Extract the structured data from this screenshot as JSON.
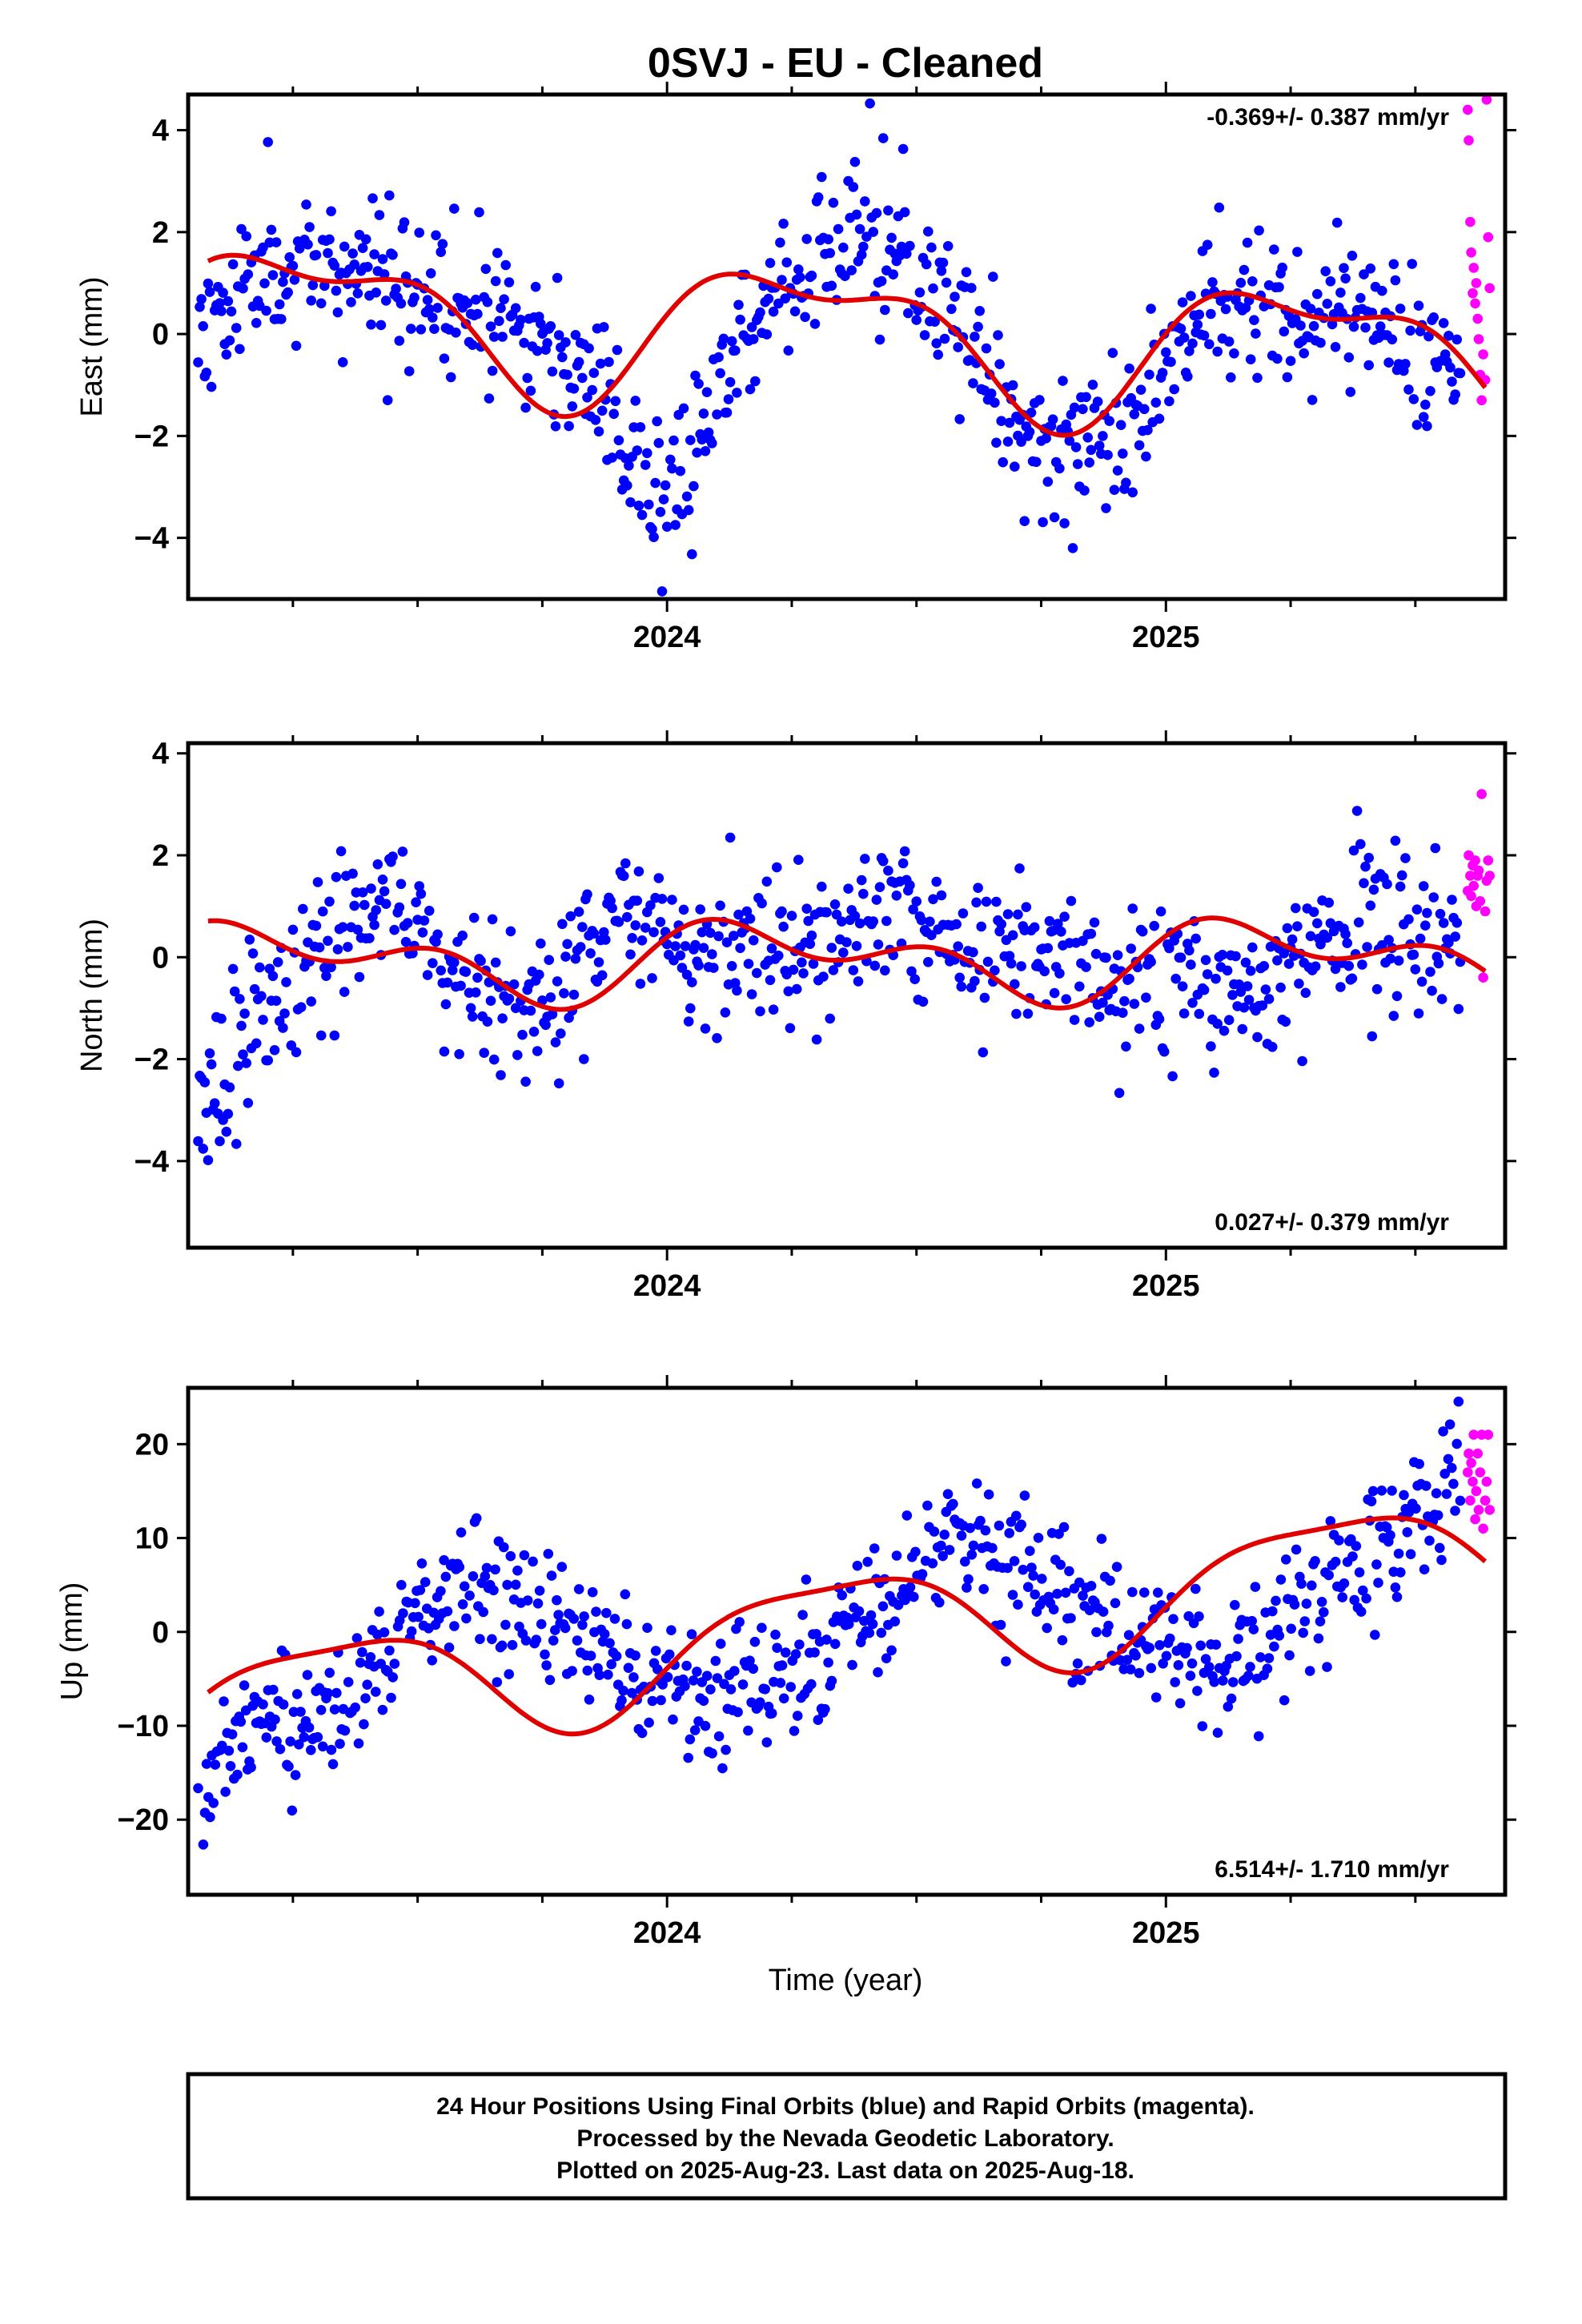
{
  "title": "0SVJ  - EU - Cleaned",
  "xlabel": "Time (year)",
  "footer": {
    "line1": "24 Hour Positions Using Final Orbits (blue) and Rapid Orbits (magenta).",
    "line2": "Processed by the Nevada Geodetic Laboratory.",
    "line3": "Plotted on 2025-Aug-23. Last data on 2025-Aug-18."
  },
  "colors": {
    "final": "#0000ff",
    "rapid": "#ff00ff",
    "model": "#e00000",
    "axis": "#000000"
  },
  "chart_data": [
    {
      "type": "scatter",
      "id": "east",
      "ylabel": "East (mm)",
      "rate_text": "-0.369+/- 0.387 mm/yr",
      "rate_position": "top-right",
      "xlim": [
        2023.04,
        2025.68
      ],
      "ylim": [
        -5.2,
        4.7
      ],
      "xticks": [
        2024,
        2025
      ],
      "yticks": [
        4,
        2,
        0,
        -2,
        -4
      ],
      "model": {
        "offset": 0.0,
        "rate": -0.369,
        "ref": 2024.35,
        "a1": -0.2,
        "b1": 1.25,
        "a2": 0.45,
        "b2": 0.35
      },
      "final_anchors": [
        [
          2023.05,
          0.1
        ],
        [
          2023.1,
          0.4
        ],
        [
          2023.2,
          1.1
        ],
        [
          2023.3,
          1.4
        ],
        [
          2023.4,
          1.2
        ],
        [
          2023.5,
          0.9
        ],
        [
          2023.6,
          0.6
        ],
        [
          2023.7,
          0.3
        ],
        [
          2023.8,
          -0.7
        ],
        [
          2023.9,
          -1.6
        ],
        [
          2023.97,
          -3.5
        ],
        [
          2024.05,
          -2.3
        ],
        [
          2024.1,
          -1.4
        ],
        [
          2024.15,
          0.2
        ],
        [
          2024.22,
          0.8
        ],
        [
          2024.3,
          1.4
        ],
        [
          2024.38,
          1.8
        ],
        [
          2024.45,
          1.6
        ],
        [
          2024.52,
          0.9
        ],
        [
          2024.6,
          0.1
        ],
        [
          2024.66,
          -1.0
        ],
        [
          2024.72,
          -2.2
        ],
        [
          2024.8,
          -2.0
        ],
        [
          2024.88,
          -2.1
        ],
        [
          2024.96,
          -1.3
        ],
        [
          2025.02,
          -0.4
        ],
        [
          2025.1,
          0.9
        ],
        [
          2025.18,
          0.6
        ],
        [
          2025.25,
          0.5
        ],
        [
          2025.35,
          0.4
        ],
        [
          2025.45,
          0.1
        ],
        [
          2025.55,
          -0.5
        ],
        [
          2025.58,
          -0.7
        ]
      ],
      "final_count": 760,
      "final_scatter": 0.75,
      "final_seed": 11,
      "final_range": [
        2023.06,
        2025.59
      ],
      "rapid": [
        [
          2025.605,
          4.4
        ],
        [
          2025.607,
          3.8
        ],
        [
          2025.61,
          2.2
        ],
        [
          2025.612,
          1.6
        ],
        [
          2025.615,
          0.8
        ],
        [
          2025.617,
          1.3
        ],
        [
          2025.62,
          0.6
        ],
        [
          2025.622,
          1.0
        ],
        [
          2025.625,
          0.3
        ],
        [
          2025.627,
          -0.1
        ],
        [
          2025.63,
          -0.8
        ],
        [
          2025.633,
          -1.3
        ],
        [
          2025.636,
          -0.4
        ],
        [
          2025.64,
          -0.9
        ],
        [
          2025.643,
          4.6
        ],
        [
          2025.646,
          1.9
        ],
        [
          2025.649,
          0.9
        ]
      ]
    },
    {
      "type": "scatter",
      "id": "north",
      "ylabel": "North (mm)",
      "rate_text": "0.027+/- 0.379 mm/yr",
      "rate_position": "bottom-right",
      "xlim": [
        2023.04,
        2025.68
      ],
      "ylim": [
        -5.7,
        4.2
      ],
      "xticks": [
        2024,
        2025
      ],
      "yticks": [
        4,
        2,
        0,
        -2,
        -4
      ],
      "model": {
        "offset": -0.05,
        "rate": 0.027,
        "ref": 2024.35,
        "a1": 0.1,
        "b1": 0.55,
        "a2": 0.35,
        "b2": 0.3
      },
      "final_anchors": [
        [
          2023.05,
          -2.8
        ],
        [
          2023.1,
          -2.0
        ],
        [
          2023.15,
          -1.5
        ],
        [
          2023.25,
          -0.6
        ],
        [
          2023.35,
          0.3
        ],
        [
          2023.45,
          1.2
        ],
        [
          2023.5,
          0.7
        ],
        [
          2023.55,
          -0.2
        ],
        [
          2023.65,
          -0.9
        ],
        [
          2023.75,
          -0.9
        ],
        [
          2023.85,
          0.4
        ],
        [
          2023.95,
          0.7
        ],
        [
          2024.05,
          -0.1
        ],
        [
          2024.15,
          0.3
        ],
        [
          2024.25,
          0.0
        ],
        [
          2024.35,
          0.6
        ],
        [
          2024.45,
          0.8
        ],
        [
          2024.55,
          0.3
        ],
        [
          2024.65,
          0.2
        ],
        [
          2024.75,
          -0.1
        ],
        [
          2024.85,
          -0.3
        ],
        [
          2024.95,
          -0.5
        ],
        [
          2025.05,
          -0.2
        ],
        [
          2025.12,
          -0.8
        ],
        [
          2025.2,
          -0.6
        ],
        [
          2025.28,
          0.2
        ],
        [
          2025.38,
          0.5
        ],
        [
          2025.48,
          0.3
        ],
        [
          2025.58,
          0.5
        ]
      ],
      "final_count": 760,
      "final_scatter": 0.75,
      "final_seed": 23,
      "final_range": [
        2023.06,
        2025.59
      ],
      "rapid": [
        [
          2025.605,
          1.3
        ],
        [
          2025.607,
          2.0
        ],
        [
          2025.61,
          1.6
        ],
        [
          2025.612,
          1.2
        ],
        [
          2025.615,
          1.8
        ],
        [
          2025.617,
          1.4
        ],
        [
          2025.62,
          1.9
        ],
        [
          2025.622,
          1.0
        ],
        [
          2025.625,
          1.6
        ],
        [
          2025.627,
          1.7
        ],
        [
          2025.63,
          1.1
        ],
        [
          2025.633,
          3.2
        ],
        [
          2025.636,
          -0.4
        ],
        [
          2025.64,
          0.9
        ],
        [
          2025.643,
          1.5
        ],
        [
          2025.646,
          1.9
        ],
        [
          2025.649,
          1.6
        ]
      ]
    },
    {
      "type": "scatter",
      "id": "up",
      "ylabel": "Up (mm)",
      "rate_text": "6.514+/- 1.710 mm/yr",
      "rate_position": "bottom-right",
      "xlim": [
        2023.04,
        2025.68
      ],
      "ylim": [
        -28,
        26
      ],
      "xticks": [
        2024,
        2025
      ],
      "yticks": [
        20,
        10,
        0,
        -10,
        -20
      ],
      "model": {
        "offset": 0.3,
        "rate": 6.514,
        "ref": 2024.35,
        "a1": -3.0,
        "b1": 5.3,
        "a2": 1.1,
        "b2": 1.2
      },
      "final_anchors": [
        [
          2023.05,
          -20
        ],
        [
          2023.1,
          -13
        ],
        [
          2023.2,
          -11
        ],
        [
          2023.3,
          -10
        ],
        [
          2023.4,
          -5
        ],
        [
          2023.5,
          3
        ],
        [
          2023.6,
          5
        ],
        [
          2023.7,
          2
        ],
        [
          2023.8,
          0
        ],
        [
          2023.9,
          -3
        ],
        [
          2024.0,
          -6
        ],
        [
          2024.1,
          -8
        ],
        [
          2024.2,
          -5
        ],
        [
          2024.3,
          -3
        ],
        [
          2024.4,
          2
        ],
        [
          2024.5,
          7
        ],
        [
          2024.6,
          9
        ],
        [
          2024.7,
          7
        ],
        [
          2024.8,
          3
        ],
        [
          2024.9,
          1
        ],
        [
          2025.0,
          -2
        ],
        [
          2025.1,
          -4
        ],
        [
          2025.2,
          0
        ],
        [
          2025.3,
          4
        ],
        [
          2025.4,
          8
        ],
        [
          2025.5,
          13
        ],
        [
          2025.58,
          17
        ]
      ],
      "final_count": 740,
      "final_scatter": 3.6,
      "final_seed": 37,
      "final_range": [
        2023.06,
        2025.59
      ],
      "rapid": [
        [
          2025.605,
          17
        ],
        [
          2025.607,
          19
        ],
        [
          2025.61,
          14
        ],
        [
          2025.612,
          18
        ],
        [
          2025.615,
          16
        ],
        [
          2025.617,
          21
        ],
        [
          2025.62,
          12
        ],
        [
          2025.622,
          15
        ],
        [
          2025.625,
          19
        ],
        [
          2025.627,
          13
        ],
        [
          2025.63,
          17
        ],
        [
          2025.633,
          21
        ],
        [
          2025.636,
          11
        ],
        [
          2025.64,
          14
        ],
        [
          2025.643,
          16
        ],
        [
          2025.646,
          21
        ],
        [
          2025.649,
          13
        ]
      ]
    }
  ]
}
